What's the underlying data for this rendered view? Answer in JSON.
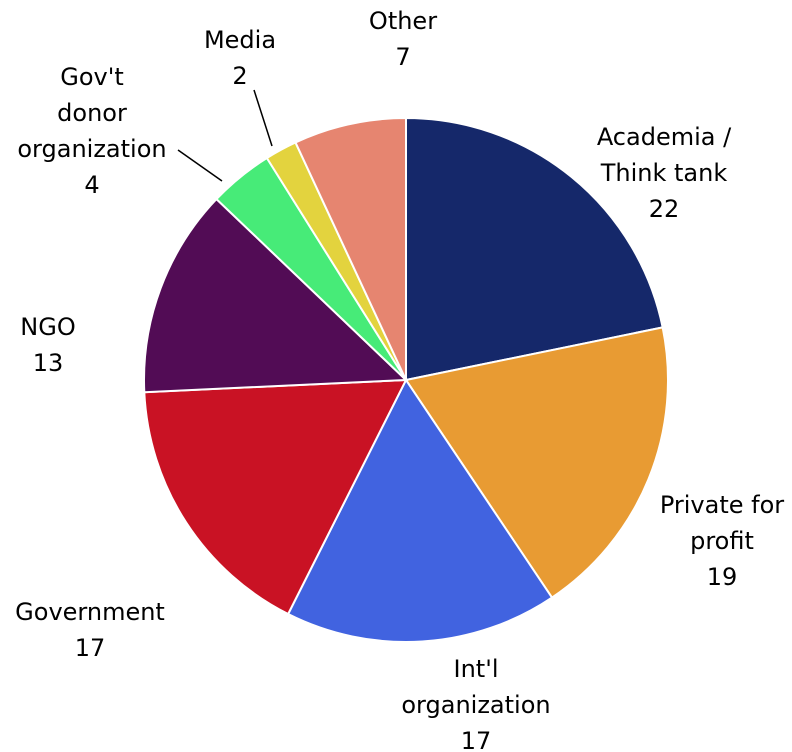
{
  "chart_data": {
    "type": "pie",
    "title": "",
    "slices": [
      {
        "label": "Academia / Think tank",
        "value": 22,
        "color": "#15286a"
      },
      {
        "label": "Private for profit",
        "value": 19,
        "color": "#e89b33"
      },
      {
        "label": "Int'l organization",
        "value": 17,
        "color": "#4163e0"
      },
      {
        "label": "Government",
        "value": 17,
        "color": "#c91224"
      },
      {
        "label": "NGO",
        "value": 13,
        "color": "#520c55"
      },
      {
        "label": "Gov't donor organization",
        "value": 4,
        "color": "#47eb78"
      },
      {
        "label": "Media",
        "value": 2,
        "color": "#e3d33e"
      },
      {
        "label": "Other",
        "value": 7,
        "color": "#e68570"
      }
    ],
    "start": "12 o'clock",
    "direction": "clockwise",
    "legend": "none (data labels outside slices)"
  }
}
